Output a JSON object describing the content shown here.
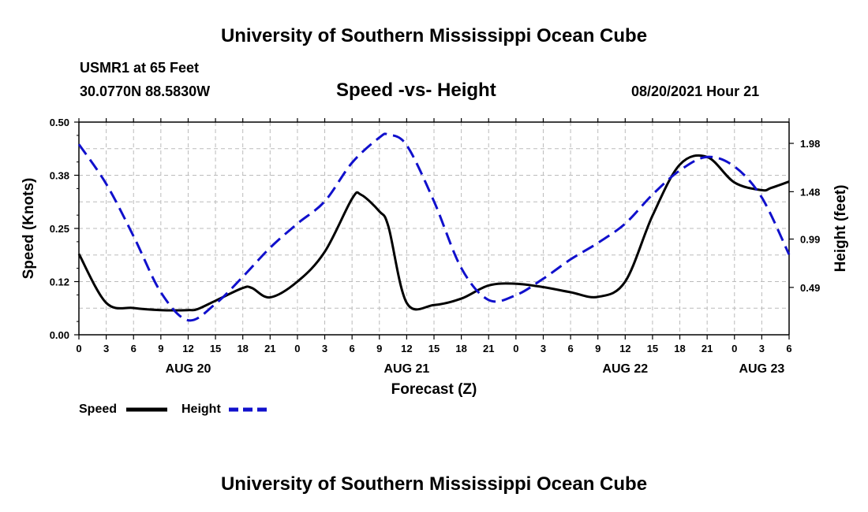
{
  "header": {
    "title_top": "University of Southern Mississippi Ocean Cube",
    "station": "USMR1 at 65 Feet",
    "coords": "30.0770N  88.5830W",
    "subtitle": "Speed -vs- Height",
    "datetime": "08/20/2021 Hour 21"
  },
  "footer": {
    "title_bottom": "University of Southern Mississippi Ocean Cube"
  },
  "colors": {
    "speed": "#000000",
    "height": "#1010cc",
    "grid": "#bbbbbb"
  },
  "chart_data": {
    "type": "line",
    "title": "Speed -vs- Height",
    "xlabel": "Forecast (Z)",
    "ylabel_left": "Speed (Knots)",
    "ylabel_right": "Height (feet)",
    "x_unit": "forecast hour since 08/20 00Z",
    "xlim": [
      0,
      78
    ],
    "ylim_left": [
      0,
      0.5
    ],
    "ylim_right": [
      0,
      2.2
    ],
    "x_ticks": [
      0,
      3,
      6,
      9,
      12,
      15,
      18,
      21,
      24,
      27,
      30,
      33,
      36,
      39,
      42,
      45,
      48,
      51,
      54,
      57,
      60,
      63,
      66,
      69,
      72,
      75,
      78
    ],
    "x_tick_labels": [
      "0",
      "3",
      "6",
      "9",
      "12",
      "15",
      "18",
      "21",
      "0",
      "3",
      "6",
      "9",
      "12",
      "15",
      "18",
      "21",
      "0",
      "3",
      "6",
      "9",
      "12",
      "15",
      "18",
      "21",
      "0",
      "3",
      "6"
    ],
    "day_labels": [
      {
        "x": 12,
        "label": "AUG 20"
      },
      {
        "x": 36,
        "label": "AUG 21"
      },
      {
        "x": 60,
        "label": "AUG 22"
      },
      {
        "x": 75,
        "label": "AUG 23"
      }
    ],
    "left_ticks": [
      0.0,
      0.125,
      0.25,
      0.375,
      0.5
    ],
    "left_tick_labels": [
      "0.00",
      "0.12",
      "0.25",
      "0.38",
      "0.50"
    ],
    "right_ticks": [
      0.49,
      0.99,
      1.48,
      1.98
    ],
    "right_tick_labels": [
      "0.49",
      "0.99",
      "1.48",
      "1.98"
    ],
    "grid": true,
    "legend_position": "bottom-left",
    "series": [
      {
        "name": "Speed",
        "axis": "left",
        "style": "solid",
        "x": [
          0,
          3,
          6,
          9,
          12,
          13,
          15,
          18,
          19,
          21,
          24,
          27,
          30,
          31,
          33,
          34,
          36,
          39,
          42,
          45,
          48,
          51,
          54,
          57,
          60,
          63,
          66,
          69,
          72,
          75,
          76,
          78
        ],
        "values": [
          0.19,
          0.075,
          0.063,
          0.058,
          0.058,
          0.06,
          0.08,
          0.11,
          0.11,
          0.088,
          0.125,
          0.195,
          0.32,
          0.329,
          0.29,
          0.254,
          0.075,
          0.07,
          0.085,
          0.116,
          0.12,
          0.112,
          0.1,
          0.089,
          0.125,
          0.28,
          0.4,
          0.418,
          0.358,
          0.34,
          0.345,
          0.36
        ]
      },
      {
        "name": "Height",
        "axis": "right",
        "style": "dashed",
        "x": [
          0,
          3,
          6,
          9,
          12,
          15,
          18,
          21,
          24,
          27,
          30,
          33,
          34,
          36,
          39,
          42,
          45,
          48,
          51,
          54,
          57,
          60,
          63,
          66,
          69,
          72,
          75,
          78
        ],
        "values": [
          1.97,
          1.56,
          1.02,
          0.44,
          0.15,
          0.32,
          0.6,
          0.9,
          1.15,
          1.38,
          1.78,
          2.04,
          2.07,
          1.96,
          1.38,
          0.69,
          0.36,
          0.41,
          0.58,
          0.78,
          0.95,
          1.15,
          1.45,
          1.7,
          1.84,
          1.74,
          1.42,
          0.83
        ]
      }
    ]
  }
}
